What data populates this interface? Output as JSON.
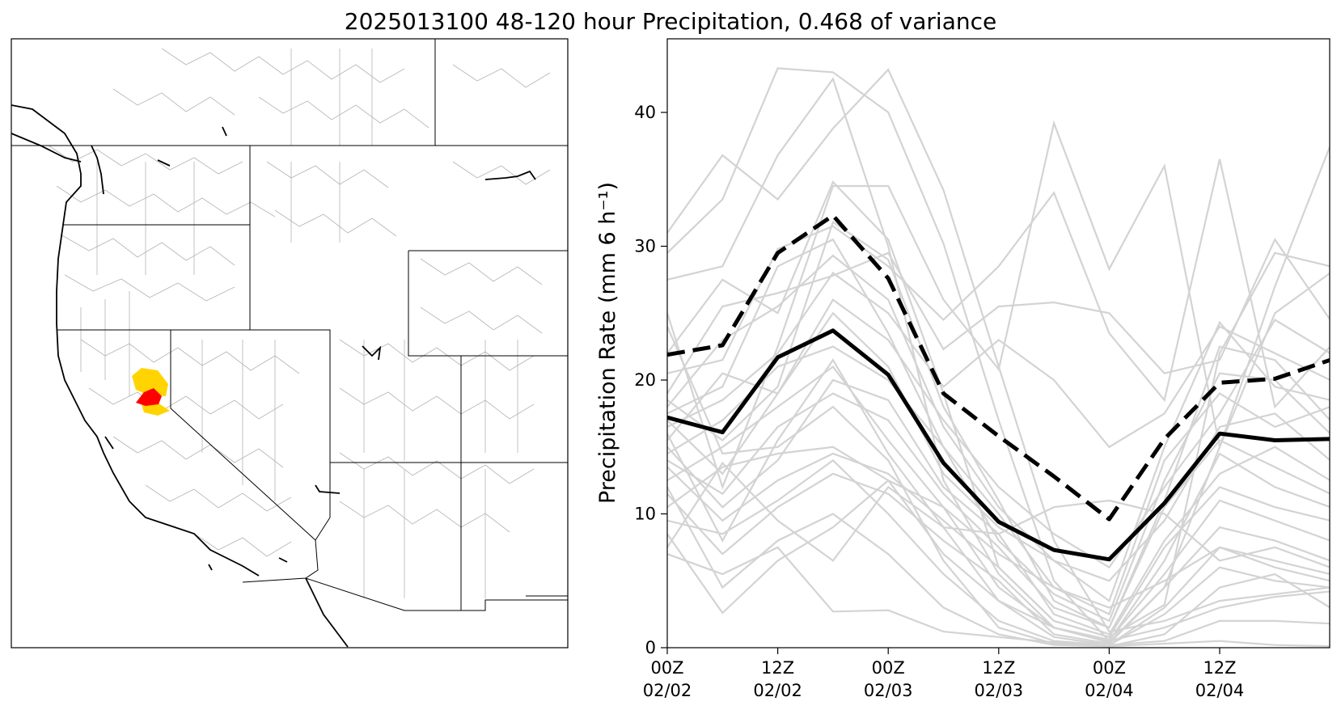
{
  "figure": {
    "title": "2025013100 48-120 hour Precipitation, 0.468 of variance"
  },
  "map": {
    "colors": {
      "basin_lines": "#b4b4b4",
      "borders": "#000000",
      "coast": "#000000",
      "highlight_primary": "#ff0000",
      "highlight_secondary": "#ffd400"
    }
  },
  "chart_data": {
    "type": "line",
    "ylabel": "Precipitation Rate (mm 6 h⁻¹)",
    "xlabel": "",
    "ylim": [
      0,
      45.5
    ],
    "x_tick_labels": [
      {
        "top": "00Z",
        "bottom": "02/02"
      },
      {
        "top": "12Z",
        "bottom": "02/02"
      },
      {
        "top": "00Z",
        "bottom": "02/03"
      },
      {
        "top": "12Z",
        "bottom": "02/03"
      },
      {
        "top": "00Z",
        "bottom": "02/04"
      },
      {
        "top": "12Z",
        "bottom": "02/04"
      }
    ],
    "y_ticks": [
      0,
      10,
      20,
      30,
      40
    ],
    "grid": false,
    "legend": "none",
    "series": [
      {
        "role": "mean",
        "style": "solid",
        "color": "#000000",
        "values": [
          17.2,
          16.1,
          21.7,
          23.7,
          20.4,
          13.8,
          9.4,
          7.3,
          6.6,
          10.8,
          16.0,
          15.5,
          15.6
        ]
      },
      {
        "role": "upper",
        "style": "dashed",
        "color": "#000000",
        "values": [
          21.9,
          22.6,
          29.5,
          32.3,
          27.6,
          19.0,
          15.8,
          12.8,
          9.6,
          15.6,
          19.8,
          20.1,
          21.5
        ]
      }
    ],
    "members_color": "#d3d3d3",
    "members": [
      [
        31.0,
        36.8,
        33.5,
        38.8,
        43.2,
        34.2,
        21.0,
        8.0,
        1.2,
        2.0,
        3.5,
        4.0,
        4.5
      ],
      [
        29.5,
        33.5,
        43.3,
        43.0,
        40.0,
        30.2,
        17.0,
        5.0,
        0.5,
        1.5,
        3.0,
        3.8,
        4.2
      ],
      [
        27.5,
        28.5,
        36.8,
        42.5,
        30.0,
        12.5,
        5.5,
        1.5,
        0.4,
        4.5,
        15.0,
        27.0,
        37.5
      ],
      [
        25.0,
        12.0,
        22.5,
        34.5,
        34.5,
        26.0,
        20.8,
        39.2,
        28.3,
        36.0,
        15.0,
        25.0,
        28.0
      ],
      [
        22.0,
        27.5,
        25.0,
        34.8,
        30.5,
        19.0,
        6.0,
        2.0,
        0.8,
        3.2,
        22.0,
        29.5,
        28.5
      ],
      [
        20.5,
        21.5,
        29.8,
        31.5,
        28.5,
        24.5,
        28.5,
        34.0,
        23.5,
        18.5,
        36.5,
        18.0,
        22.5
      ],
      [
        19.0,
        25.5,
        26.5,
        27.8,
        29.5,
        22.3,
        25.5,
        25.8,
        25.0,
        20.5,
        21.5,
        30.5,
        24.5
      ],
      [
        18.5,
        15.5,
        19.5,
        31.8,
        29.0,
        18.0,
        11.0,
        3.5,
        1.5,
        11.0,
        22.5,
        21.5,
        17.0
      ],
      [
        18.0,
        23.0,
        25.5,
        29.3,
        26.0,
        16.5,
        10.5,
        6.5,
        3.5,
        15.0,
        24.3,
        19.5,
        18.5
      ],
      [
        17.5,
        19.5,
        28.5,
        30.5,
        23.5,
        15.0,
        8.0,
        4.0,
        2.0,
        12.5,
        20.5,
        20.0,
        16.0
      ],
      [
        17.0,
        13.0,
        19.0,
        25.0,
        21.0,
        13.0,
        9.0,
        6.5,
        5.0,
        9.5,
        16.5,
        17.5,
        14.0
      ],
      [
        16.5,
        18.5,
        22.0,
        28.0,
        25.0,
        19.5,
        23.0,
        20.0,
        15.0,
        17.5,
        24.0,
        22.0,
        20.0
      ],
      [
        16.0,
        8.0,
        15.5,
        21.5,
        14.5,
        9.0,
        3.5,
        1.5,
        0.5,
        6.5,
        14.5,
        12.0,
        10.5
      ],
      [
        15.5,
        20.5,
        19.0,
        26.0,
        23.0,
        17.0,
        12.0,
        8.5,
        6.0,
        12.0,
        17.5,
        24.5,
        22.0
      ],
      [
        15.0,
        10.5,
        14.0,
        20.0,
        18.5,
        12.0,
        8.5,
        2.5,
        1.0,
        8.0,
        13.0,
        15.0,
        12.5
      ],
      [
        14.5,
        17.0,
        21.0,
        22.5,
        20.0,
        15.0,
        10.0,
        4.5,
        2.5,
        14.0,
        19.0,
        16.5,
        18.0
      ],
      [
        14.0,
        11.5,
        16.5,
        19.0,
        17.0,
        11.5,
        7.5,
        3.0,
        1.5,
        10.5,
        15.5,
        13.5,
        11.5
      ],
      [
        13.5,
        9.5,
        12.5,
        14.5,
        13.0,
        9.5,
        6.0,
        2.0,
        0.8,
        7.5,
        12.0,
        10.5,
        9.5
      ],
      [
        12.5,
        15.0,
        18.0,
        21.0,
        15.5,
        10.5,
        4.5,
        1.5,
        0.6,
        5.5,
        11.0,
        9.5,
        8.0
      ],
      [
        11.5,
        7.0,
        10.5,
        13.0,
        11.5,
        8.0,
        5.0,
        1.0,
        0.3,
        4.5,
        9.0,
        8.0,
        6.5
      ],
      [
        10.5,
        13.5,
        14.5,
        15.0,
        12.5,
        7.0,
        3.5,
        0.8,
        0.2,
        3.0,
        7.5,
        6.5,
        5.5
      ],
      [
        9.5,
        8.5,
        11.0,
        14.0,
        10.0,
        5.5,
        2.0,
        0.5,
        0.2,
        2.5,
        6.0,
        5.0,
        4.5
      ],
      [
        8.5,
        2.6,
        6.5,
        9.0,
        12.5,
        10.5,
        7.0,
        4.5,
        3.0,
        5.0,
        7.5,
        6.0,
        5.0
      ],
      [
        7.5,
        13.8,
        9.5,
        6.5,
        12.0,
        9.0,
        8.5,
        10.5,
        11.0,
        10.0,
        6.5,
        7.5,
        6.0
      ],
      [
        7.0,
        5.5,
        7.5,
        2.7,
        2.8,
        1.2,
        0.8,
        0.4,
        0.2,
        0.5,
        2.0,
        2.0,
        1.8
      ],
      [
        24.0,
        14.5,
        15.0,
        18.0,
        14.0,
        6.5,
        1.5,
        0.3,
        0.1,
        1.0,
        4.5,
        5.5,
        3.0
      ],
      [
        12.0,
        4.5,
        8.0,
        10.0,
        7.0,
        3.0,
        1.0,
        0.2,
        0.1,
        0.3,
        0.5,
        0.2,
        0.1
      ]
    ]
  }
}
